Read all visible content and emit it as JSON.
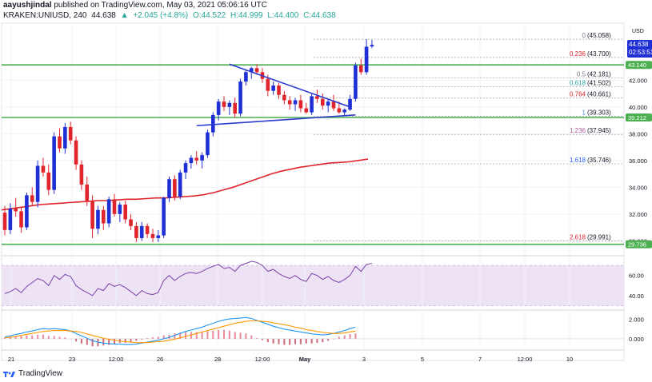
{
  "header": {
    "author": "aayushjindal",
    "published_text": "published on TradingView.com, May 03, 2021 05:06:16 UTC",
    "symbol": "KRAKEN:UNIUSD, 240",
    "last": "44.638",
    "change": "+2.045 (+4.8%)",
    "open": "O:44.522",
    "high": "H:44.999",
    "low": "L:44.400",
    "close": "C:44.638"
  },
  "footer": {
    "brand": "TradingView"
  },
  "axis": {
    "currency": "USD"
  },
  "tags": {
    "last_price": "44.638",
    "countdown": "02:53:51",
    "resistance": "43.140",
    "support_mid": "39.212",
    "support_low": "29.736"
  },
  "colors": {
    "bull": "#1e2fd6",
    "bear": "#e0242b",
    "sma": "#e0242b",
    "trend": "#2b3bd1",
    "level": "#4caf50",
    "rsi": "#7b3fa8",
    "macd": "#2196f3",
    "signal": "#ff9800",
    "hist_pos": "#e98a9c",
    "hist_neg": "#ce6b7b",
    "rsi_band": "#ede3f5"
  },
  "chart_data": [
    {
      "type": "candlestick",
      "title": "KRAKEN:UNIUSD, 240",
      "ylabel": "USD",
      "ylim": [
        29.0,
        46.2
      ],
      "yticks": [
        30.0,
        32.0,
        34.0,
        36.0,
        38.0,
        40.0,
        42.0
      ],
      "ytick_labels": [
        "30.000",
        "32.000",
        "34.000",
        "36.000",
        "38.000",
        "40.000",
        "42.000"
      ],
      "xticks": [
        "21",
        "23",
        "12:00",
        "26",
        "28",
        "12:00",
        "May",
        "3",
        "5",
        "7",
        "12:00",
        "10"
      ],
      "candles": [
        [
          32.1,
          32.6,
          30.4,
          30.8
        ],
        [
          30.8,
          32.8,
          30.5,
          32.4
        ],
        [
          32.4,
          33.2,
          31.8,
          32.2
        ],
        [
          32.2,
          32.5,
          30.6,
          31.0
        ],
        [
          31.0,
          33.6,
          30.8,
          33.4
        ],
        [
          33.4,
          34.0,
          32.6,
          32.9
        ],
        [
          32.9,
          36.0,
          32.5,
          35.6
        ],
        [
          35.6,
          36.2,
          34.8,
          35.1
        ],
        [
          35.1,
          35.7,
          33.4,
          33.8
        ],
        [
          33.8,
          38.1,
          33.5,
          37.8
        ],
        [
          37.8,
          38.4,
          36.6,
          36.9
        ],
        [
          36.9,
          38.8,
          36.5,
          38.5
        ],
        [
          38.5,
          38.9,
          37.2,
          37.5
        ],
        [
          37.5,
          37.8,
          35.3,
          35.7
        ],
        [
          35.7,
          36.0,
          33.8,
          34.2
        ],
        [
          34.2,
          34.8,
          32.6,
          33.0
        ],
        [
          33.0,
          33.4,
          30.2,
          30.9
        ],
        [
          30.9,
          32.6,
          30.5,
          32.3
        ],
        [
          32.3,
          32.6,
          30.8,
          31.3
        ],
        [
          31.3,
          33.3,
          31.0,
          33.1
        ],
        [
          33.1,
          33.5,
          31.8,
          32.0
        ],
        [
          32.0,
          32.9,
          31.4,
          32.7
        ],
        [
          32.7,
          33.0,
          31.3,
          31.6
        ],
        [
          31.6,
          32.0,
          30.8,
          31.1
        ],
        [
          31.1,
          31.4,
          29.9,
          30.2
        ],
        [
          30.2,
          31.4,
          30.0,
          31.1
        ],
        [
          31.1,
          31.3,
          30.2,
          30.5
        ],
        [
          30.5,
          30.9,
          29.9,
          30.2
        ],
        [
          30.2,
          30.8,
          29.9,
          30.4
        ],
        [
          30.4,
          33.3,
          30.2,
          33.2
        ],
        [
          33.2,
          34.8,
          32.9,
          34.6
        ],
        [
          34.6,
          34.9,
          33.0,
          33.3
        ],
        [
          33.3,
          35.3,
          33.1,
          35.1
        ],
        [
          35.1,
          36.0,
          34.6,
          35.8
        ],
        [
          35.8,
          36.4,
          35.4,
          36.2
        ],
        [
          36.2,
          36.7,
          35.7,
          36.0
        ],
        [
          36.0,
          36.6,
          35.4,
          36.4
        ],
        [
          36.4,
          38.3,
          36.2,
          38.1
        ],
        [
          38.1,
          39.6,
          37.8,
          39.4
        ],
        [
          39.4,
          40.6,
          39.0,
          40.4
        ],
        [
          40.4,
          40.8,
          39.7,
          40.0
        ],
        [
          40.0,
          40.5,
          39.4,
          40.3
        ],
        [
          40.3,
          40.7,
          39.2,
          39.5
        ],
        [
          39.5,
          42.1,
          39.3,
          41.9
        ],
        [
          41.9,
          42.8,
          41.6,
          42.6
        ],
        [
          42.6,
          43.0,
          42.1,
          42.9
        ],
        [
          42.9,
          43.2,
          42.4,
          42.6
        ],
        [
          42.6,
          42.9,
          41.8,
          42.1
        ],
        [
          42.1,
          42.4,
          40.8,
          41.2
        ],
        [
          41.2,
          41.9,
          40.9,
          41.6
        ],
        [
          41.6,
          41.8,
          40.6,
          40.9
        ],
        [
          40.9,
          41.2,
          40.2,
          40.5
        ],
        [
          40.5,
          40.8,
          39.8,
          40.2
        ],
        [
          40.2,
          40.7,
          39.7,
          40.5
        ],
        [
          40.5,
          40.9,
          39.6,
          39.9
        ],
        [
          39.9,
          40.3,
          39.5,
          39.6
        ],
        [
          39.6,
          41.0,
          39.4,
          40.8
        ],
        [
          40.8,
          41.3,
          40.3,
          40.6
        ],
        [
          40.6,
          41.0,
          39.8,
          40.1
        ],
        [
          40.1,
          40.6,
          39.6,
          40.4
        ],
        [
          40.4,
          40.9,
          39.7,
          39.9
        ],
        [
          39.9,
          40.4,
          39.5,
          39.6
        ],
        [
          39.6,
          39.9,
          39.3,
          39.8
        ],
        [
          39.8,
          40.9,
          39.7,
          40.6
        ],
        [
          40.6,
          43.3,
          40.4,
          43.1
        ],
        [
          43.1,
          43.6,
          42.4,
          42.6
        ],
        [
          42.6,
          45.06,
          42.4,
          44.5
        ],
        [
          44.522,
          44.999,
          44.4,
          44.638
        ]
      ],
      "sma100": [
        32.3,
        32.4,
        32.5,
        32.6,
        32.7,
        32.75,
        32.8,
        32.85,
        32.9,
        32.95,
        33.0,
        33.0,
        33.05,
        33.1,
        33.1,
        33.15,
        33.2,
        33.2,
        33.25,
        33.3,
        33.35,
        33.45,
        33.6,
        33.8,
        34.0,
        34.25,
        34.5,
        34.75,
        35.0,
        35.2,
        35.35,
        35.5,
        35.6,
        35.7,
        35.8,
        35.85,
        35.9,
        36.0,
        36.1
      ],
      "trendlines": [
        {
          "name": "descending",
          "from": [
            41,
            43.2
          ],
          "to": [
            63,
            40.0
          ]
        },
        {
          "name": "ascending",
          "from": [
            35,
            38.6
          ],
          "to": [
            64,
            39.4
          ]
        }
      ],
      "levels": [
        {
          "name": "resistance",
          "value": 43.14,
          "label": "43.140"
        },
        {
          "name": "support",
          "value": 39.212,
          "label": "39.212"
        },
        {
          "name": "bottom",
          "value": 29.736,
          "label": "29.736"
        }
      ],
      "fibonacci": [
        {
          "ratio": "0",
          "price": "45.058",
          "value": 45.058
        },
        {
          "ratio": "0.236",
          "price": "43.700",
          "value": 43.7
        },
        {
          "ratio": "0.5",
          "price": "42.181",
          "value": 42.181
        },
        {
          "ratio": "0.618",
          "price": "41.502",
          "value": 41.502
        },
        {
          "ratio": "0.764",
          "price": "40.661",
          "value": 40.661
        },
        {
          "ratio": "1",
          "price": "39.303",
          "value": 39.303
        },
        {
          "ratio": "1.236",
          "price": "37.945",
          "value": 37.945
        },
        {
          "ratio": "1.618",
          "price": "35.746",
          "value": 35.746
        },
        {
          "ratio": "2.618",
          "price": "29.991",
          "value": 29.991
        }
      ]
    },
    {
      "type": "line",
      "title": "RSI",
      "ylim": [
        28,
        78
      ],
      "yticks": [
        40,
        60
      ],
      "ytick_labels": [
        "40.00",
        "60.00"
      ],
      "band": [
        30,
        70
      ],
      "values": [
        42,
        44,
        47,
        43,
        49,
        53,
        57,
        55,
        50,
        60,
        56,
        61,
        59,
        50,
        46,
        43,
        40,
        47,
        45,
        52,
        49,
        51,
        48,
        44,
        40,
        45,
        42,
        41,
        43,
        55,
        60,
        55,
        59,
        62,
        63,
        62,
        64,
        67,
        69,
        71,
        67,
        68,
        64,
        70,
        72,
        74,
        73,
        70,
        64,
        66,
        62,
        59,
        57,
        60,
        56,
        54,
        62,
        60,
        56,
        59,
        55,
        53,
        56,
        60,
        69,
        64,
        71,
        72
      ]
    },
    {
      "type": "line",
      "title": "MACD",
      "ylim": [
        -1.0,
        2.8
      ],
      "yticks": [
        0.0,
        2.0
      ],
      "ytick_labels": [
        "0.000",
        "2.000"
      ],
      "macd": [
        0.2,
        0.3,
        0.45,
        0.55,
        0.7,
        0.8,
        0.95,
        1.05,
        1.0,
        1.05,
        1.0,
        0.95,
        0.8,
        0.55,
        0.3,
        0.05,
        -0.2,
        -0.35,
        -0.45,
        -0.5,
        -0.55,
        -0.55,
        -0.6,
        -0.6,
        -0.55,
        -0.45,
        -0.35,
        -0.25,
        -0.15,
        0.0,
        0.15,
        0.35,
        0.55,
        0.75,
        0.9,
        1.05,
        1.2,
        1.4,
        1.6,
        1.8,
        1.95,
        2.05,
        2.1,
        2.15,
        2.2,
        2.1,
        1.9,
        1.7,
        1.5,
        1.3,
        1.15,
        1.0,
        0.9,
        0.8,
        0.7,
        0.6,
        0.5,
        0.45,
        0.4,
        0.45,
        0.55,
        0.7,
        0.85,
        1.05,
        1.2
      ],
      "signal": [
        0.1,
        0.15,
        0.25,
        0.35,
        0.45,
        0.55,
        0.65,
        0.75,
        0.8,
        0.85,
        0.85,
        0.85,
        0.8,
        0.75,
        0.65,
        0.5,
        0.35,
        0.2,
        0.05,
        -0.05,
        -0.15,
        -0.25,
        -0.3,
        -0.35,
        -0.4,
        -0.4,
        -0.4,
        -0.35,
        -0.3,
        -0.25,
        -0.15,
        -0.05,
        0.1,
        0.25,
        0.4,
        0.55,
        0.7,
        0.85,
        1.0,
        1.15,
        1.3,
        1.45,
        1.6,
        1.7,
        1.8,
        1.85,
        1.85,
        1.8,
        1.75,
        1.65,
        1.55,
        1.45,
        1.35,
        1.2,
        1.1,
        0.95,
        0.85,
        0.75,
        0.65,
        0.6,
        0.55,
        0.55,
        0.6,
        0.7,
        0.8
      ]
    }
  ]
}
